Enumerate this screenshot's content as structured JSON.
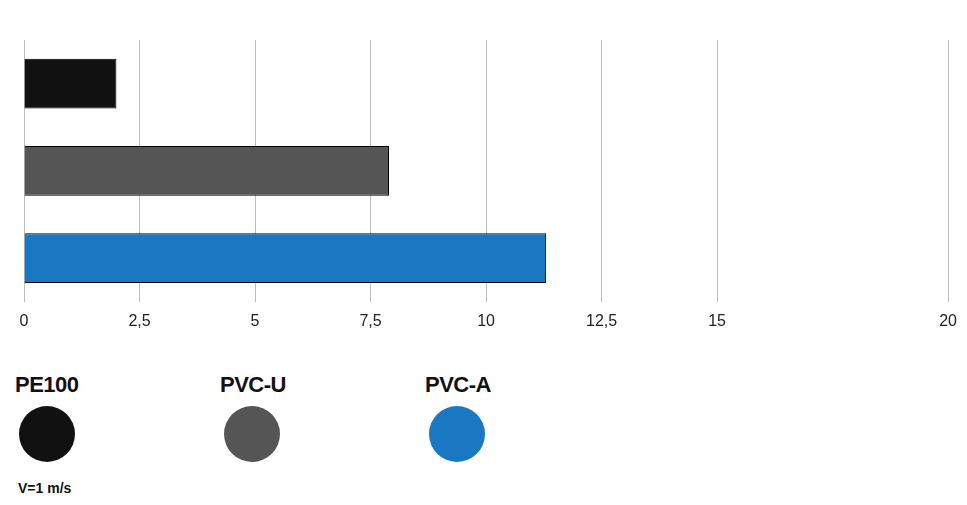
{
  "chart_data": {
    "type": "bar",
    "orientation": "horizontal",
    "categories": [
      "PE100",
      "PVC-U",
      "PVC-A"
    ],
    "values": [
      2.0,
      7.9,
      11.3
    ],
    "colors": [
      "#111111",
      "#555555",
      "#1a78c2"
    ],
    "xlim": [
      0,
      20
    ],
    "xticks": [
      0,
      {
        "value": 2.5,
        "label": "2,5"
      },
      5,
      {
        "value": 7.5,
        "label": "7,5"
      },
      10,
      {
        "value": 12.5,
        "label": "12,5"
      },
      15,
      20
    ],
    "grid": true,
    "legend": "bottom",
    "tick_labels": "x",
    "annotation": "V=1 m/s"
  }
}
